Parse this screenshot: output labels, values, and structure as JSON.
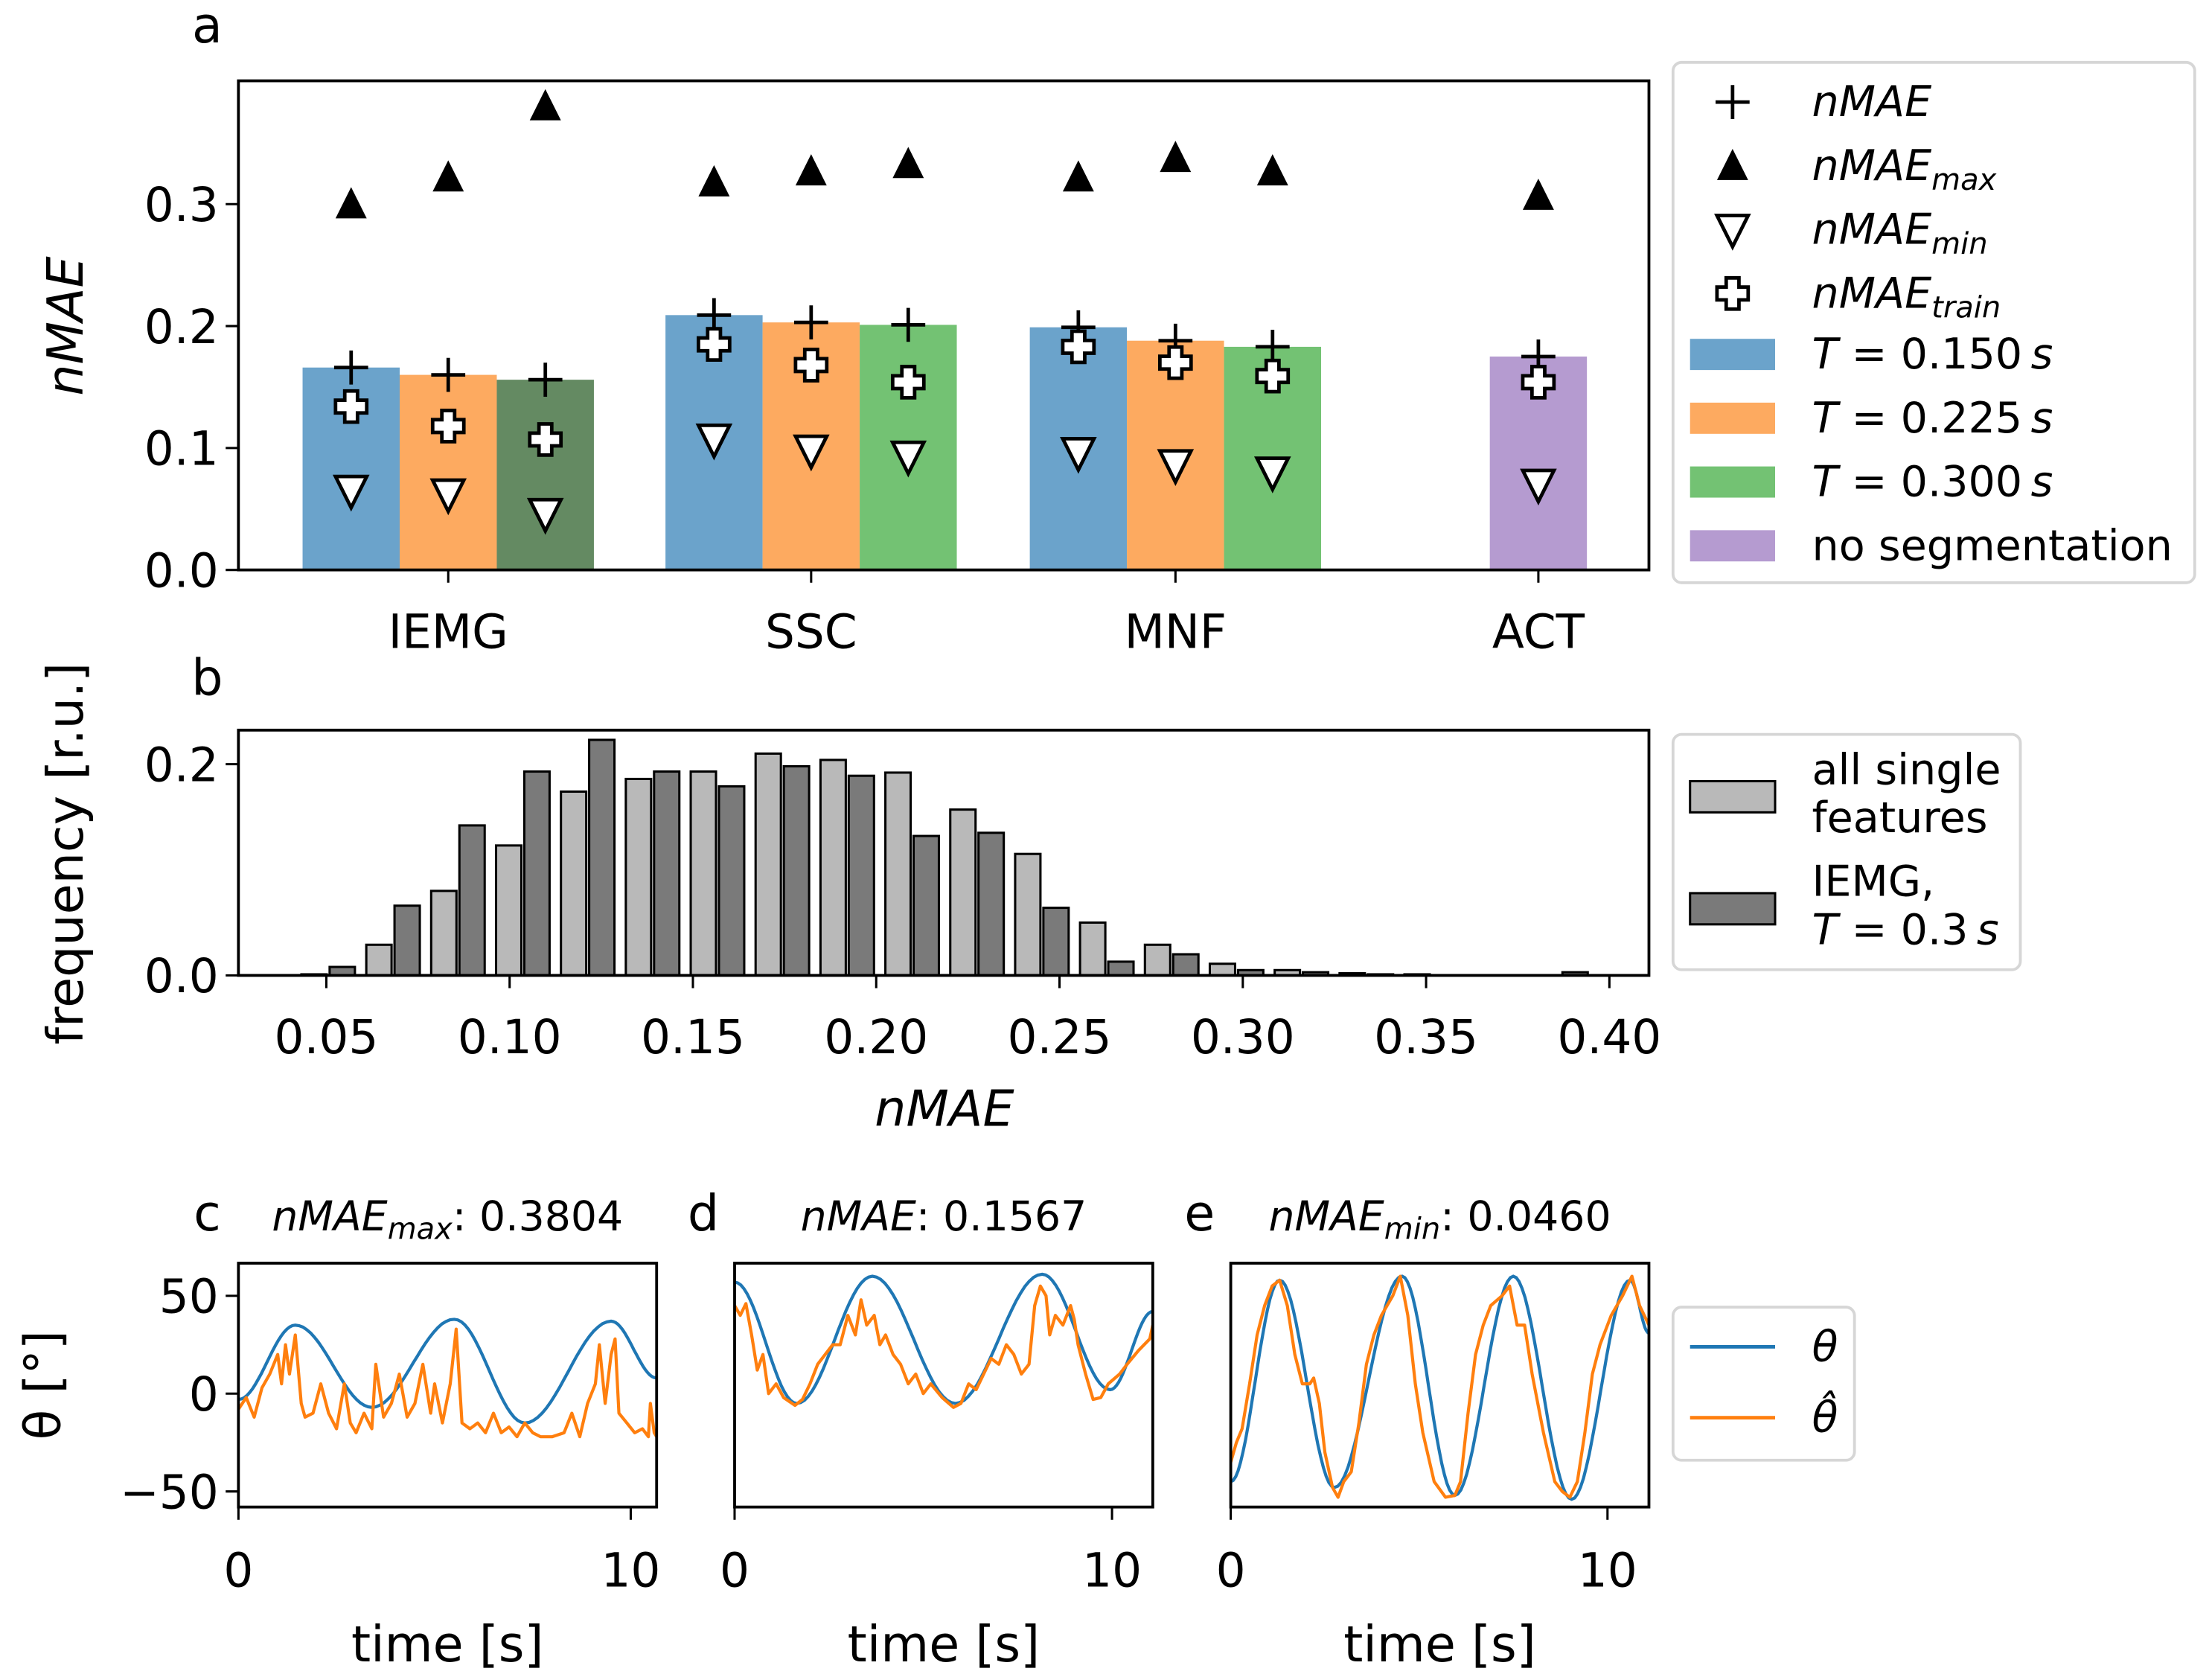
{
  "colors": {
    "blue": "#6ba3cb",
    "orange": "#fdaa60",
    "green": "#73c273",
    "dark_green": "#648a62",
    "purple": "#b59bd0",
    "light_gray": "#b9b9b9",
    "dark_gray": "#7a7a7a",
    "theta": "#1f77b4",
    "theta_hat": "#ff7f0e"
  },
  "chart_data": [
    {
      "panel": "a",
      "type": "bar",
      "panel_label": "a",
      "ylabel": "nMAE",
      "ylim": [
        0,
        0.4
      ],
      "yticks": [
        "0.0",
        "0.1",
        "0.2",
        "0.3"
      ],
      "categories": [
        "IEMG",
        "SSC",
        "MNF",
        "ACT"
      ],
      "series": [
        {
          "name": "T = 0.150 s",
          "values": [
            0.166,
            0.209,
            0.199,
            null
          ],
          "nMAE_max": [
            0.3,
            0.318,
            0.322,
            null
          ],
          "nMAE_min": [
            0.065,
            0.107,
            0.096,
            null
          ],
          "nMAE_train": [
            0.134,
            0.185,
            0.183,
            null
          ]
        },
        {
          "name": "T = 0.225 s",
          "values": [
            0.16,
            0.203,
            0.188,
            null
          ],
          "nMAE_max": [
            0.322,
            0.327,
            0.338,
            null
          ],
          "nMAE_min": [
            0.062,
            0.098,
            0.086,
            null
          ],
          "nMAE_train": [
            0.118,
            0.168,
            0.17,
            null
          ]
        },
        {
          "name": "T = 0.300 s",
          "values": [
            0.156,
            0.201,
            0.183,
            null
          ],
          "nMAE_max": [
            0.3804,
            0.333,
            0.327,
            null
          ],
          "nMAE_min": [
            0.046,
            0.093,
            0.08,
            null
          ],
          "nMAE_train": [
            0.107,
            0.154,
            0.159,
            null
          ]
        },
        {
          "name": "no segmentation",
          "values": [
            null,
            null,
            null,
            0.175
          ],
          "nMAE_max": [
            null,
            null,
            null,
            0.307
          ],
          "nMAE_min": [
            null,
            null,
            null,
            0.07
          ],
          "nMAE_train": [
            null,
            null,
            null,
            0.154
          ]
        }
      ],
      "legend": {
        "placement": "outside-right",
        "markers": [
          {
            "metric": "nMAE",
            "sub": ""
          },
          {
            "metric": "nMAE",
            "sub": "max"
          },
          {
            "metric": "nMAE",
            "sub": "min"
          },
          {
            "metric": "nMAE",
            "sub": "train"
          }
        ],
        "patches": [
          {
            "var": "T",
            "eq": " = ",
            "value": "0.150",
            "unit": "s"
          },
          {
            "var": "T",
            "eq": " = ",
            "value": "0.225",
            "unit": "s"
          },
          {
            "var": "T",
            "eq": " = ",
            "value": "0.300",
            "unit": "s"
          },
          {
            "text": "no segmentation"
          }
        ]
      }
    },
    {
      "panel": "b",
      "type": "bar",
      "panel_label": "b",
      "xlabel": "nMAE",
      "ylabel": "frequency [r.u.]",
      "xlim": [
        0.03,
        0.415
      ],
      "ylim": [
        0,
        0.23
      ],
      "xticks": [
        "0.05",
        "0.10",
        "0.15",
        "0.20",
        "0.25",
        "0.30",
        "0.35",
        "0.40"
      ],
      "yticks": [
        "0.0",
        "0.2"
      ],
      "bin_width": 0.0177,
      "bin_centers": [
        0.0505,
        0.0682,
        0.0859,
        0.1036,
        0.1213,
        0.139,
        0.1567,
        0.1744,
        0.1921,
        0.2098,
        0.2275,
        0.2452,
        0.2629,
        0.2806,
        0.2983,
        0.316,
        0.3337,
        0.3514,
        0.3691,
        0.3868
      ],
      "series": [
        {
          "name": "all single features",
          "values": [
            0.001,
            0.029,
            0.08,
            0.123,
            0.174,
            0.186,
            0.193,
            0.21,
            0.204,
            0.192,
            0.157,
            0.115,
            0.05,
            0.029,
            0.011,
            0.005,
            0.002,
            0.001,
            0,
            0
          ]
        },
        {
          "name": "IEMG, T = 0.3 s",
          "values": [
            0.008,
            0.066,
            0.142,
            0.193,
            0.223,
            0.193,
            0.179,
            0.198,
            0.189,
            0.132,
            0.135,
            0.064,
            0.013,
            0.02,
            0.005,
            0.003,
            0.001,
            0,
            0,
            0.003
          ]
        }
      ],
      "legend": {
        "placement": "outside-right",
        "entries": [
          {
            "line1": "all single",
            "line2": "features"
          },
          {
            "line1": "IEMG,",
            "var": "T",
            "eq": " = ",
            "value": "0.3",
            "unit": "s"
          }
        ]
      }
    },
    {
      "panel": "c",
      "type": "line",
      "panel_label": "c",
      "title": {
        "metric": "nMAE",
        "sub": "max",
        "value": ": 0.3804"
      },
      "xlabel": "time [s]",
      "ylabel": "θ [°]",
      "xlim": [
        0,
        10.66
      ],
      "ylim": [
        -62,
        67
      ],
      "xticks": [
        "0",
        "10"
      ],
      "yticks": [
        "50",
        "0",
        "−50"
      ],
      "theta_extrema": [
        [
          0,
          -3
        ],
        [
          1.45,
          35
        ],
        [
          3.4,
          -7
        ],
        [
          5.5,
          38
        ],
        [
          7.3,
          -15
        ],
        [
          9.5,
          37
        ],
        [
          10.66,
          8
        ]
      ],
      "theta_hat": [
        [
          0,
          -8
        ],
        [
          0.2,
          -2
        ],
        [
          0.4,
          -12
        ],
        [
          0.6,
          3
        ],
        [
          0.8,
          10
        ],
        [
          1.0,
          20
        ],
        [
          1.1,
          5
        ],
        [
          1.2,
          25
        ],
        [
          1.3,
          10
        ],
        [
          1.45,
          30
        ],
        [
          1.6,
          -5
        ],
        [
          1.7,
          -12
        ],
        [
          1.9,
          -10
        ],
        [
          2.1,
          5
        ],
        [
          2.3,
          -10
        ],
        [
          2.5,
          -18
        ],
        [
          2.7,
          5
        ],
        [
          2.85,
          -15
        ],
        [
          3.0,
          -20
        ],
        [
          3.2,
          -10
        ],
        [
          3.4,
          -18
        ],
        [
          3.5,
          15
        ],
        [
          3.7,
          -12
        ],
        [
          3.9,
          -5
        ],
        [
          4.1,
          10
        ],
        [
          4.3,
          -12
        ],
        [
          4.5,
          -5
        ],
        [
          4.7,
          15
        ],
        [
          4.9,
          -10
        ],
        [
          5.0,
          5
        ],
        [
          5.2,
          -15
        ],
        [
          5.4,
          5
        ],
        [
          5.55,
          33
        ],
        [
          5.7,
          -15
        ],
        [
          5.9,
          -18
        ],
        [
          6.1,
          -15
        ],
        [
          6.3,
          -20
        ],
        [
          6.5,
          -10
        ],
        [
          6.7,
          -20
        ],
        [
          6.9,
          -17
        ],
        [
          7.1,
          -22
        ],
        [
          7.3,
          -15
        ],
        [
          7.5,
          -20
        ],
        [
          7.7,
          -22
        ],
        [
          8.0,
          -22
        ],
        [
          8.3,
          -20
        ],
        [
          8.5,
          -10
        ],
        [
          8.7,
          -22
        ],
        [
          8.9,
          -5
        ],
        [
          9.1,
          5
        ],
        [
          9.2,
          25
        ],
        [
          9.35,
          -5
        ],
        [
          9.5,
          20
        ],
        [
          9.6,
          28
        ],
        [
          9.7,
          -10
        ],
        [
          9.9,
          -15
        ],
        [
          10.1,
          -20
        ],
        [
          10.3,
          -18
        ],
        [
          10.45,
          -22
        ],
        [
          10.5,
          -5
        ],
        [
          10.6,
          -20
        ],
        [
          10.66,
          -22
        ]
      ]
    },
    {
      "panel": "d",
      "type": "line",
      "panel_label": "d",
      "title": {
        "metric": "nMAE",
        "sub": "",
        "value": ": 0.1567"
      },
      "xlabel": "time [s]",
      "xlim": [
        0,
        11.08
      ],
      "ylim": [
        -62,
        67
      ],
      "xticks": [
        "0",
        "10"
      ],
      "theta_extrema": [
        [
          0,
          57
        ],
        [
          1.65,
          -5
        ],
        [
          3.65,
          60
        ],
        [
          5.85,
          -5
        ],
        [
          8.15,
          61
        ],
        [
          9.95,
          2
        ],
        [
          11.08,
          42
        ]
      ],
      "theta_hat": [
        [
          0,
          45
        ],
        [
          0.15,
          40
        ],
        [
          0.3,
          46
        ],
        [
          0.45,
          30
        ],
        [
          0.6,
          12
        ],
        [
          0.75,
          20
        ],
        [
          0.9,
          0
        ],
        [
          1.1,
          5
        ],
        [
          1.3,
          -2
        ],
        [
          1.6,
          -6
        ],
        [
          1.8,
          -3
        ],
        [
          2.0,
          5
        ],
        [
          2.2,
          15
        ],
        [
          2.4,
          20
        ],
        [
          2.6,
          25
        ],
        [
          2.8,
          25
        ],
        [
          3.0,
          40
        ],
        [
          3.2,
          30
        ],
        [
          3.35,
          48
        ],
        [
          3.5,
          35
        ],
        [
          3.7,
          40
        ],
        [
          3.85,
          25
        ],
        [
          4.0,
          30
        ],
        [
          4.2,
          20
        ],
        [
          4.4,
          15
        ],
        [
          4.6,
          5
        ],
        [
          4.8,
          10
        ],
        [
          5.0,
          0
        ],
        [
          5.2,
          5
        ],
        [
          5.5,
          -2
        ],
        [
          5.8,
          -7
        ],
        [
          6.0,
          -5
        ],
        [
          6.2,
          5
        ],
        [
          6.4,
          2
        ],
        [
          6.6,
          10
        ],
        [
          6.8,
          18
        ],
        [
          7.0,
          15
        ],
        [
          7.2,
          25
        ],
        [
          7.4,
          20
        ],
        [
          7.6,
          10
        ],
        [
          7.8,
          15
        ],
        [
          7.95,
          45
        ],
        [
          8.1,
          55
        ],
        [
          8.25,
          50
        ],
        [
          8.35,
          30
        ],
        [
          8.5,
          40
        ],
        [
          8.7,
          35
        ],
        [
          8.9,
          45
        ],
        [
          9.0,
          38
        ],
        [
          9.1,
          25
        ],
        [
          9.3,
          10
        ],
        [
          9.5,
          -3
        ],
        [
          9.7,
          -2
        ],
        [
          9.9,
          5
        ],
        [
          10.2,
          10
        ],
        [
          10.4,
          15
        ],
        [
          10.7,
          22
        ],
        [
          11.0,
          28
        ],
        [
          11.08,
          35
        ]
      ]
    },
    {
      "panel": "e",
      "type": "line",
      "panel_label": "e",
      "title": {
        "metric": "nMAE",
        "sub": "min",
        "value": ": 0.0460"
      },
      "xlabel": "time [s]",
      "xlim": [
        0,
        11.1
      ],
      "ylim": [
        -62,
        67
      ],
      "xticks": [
        "0",
        "10"
      ],
      "theta_extrema": [
        [
          0,
          -45
        ],
        [
          1.3,
          58
        ],
        [
          2.75,
          -48
        ],
        [
          4.55,
          60
        ],
        [
          5.95,
          -52
        ],
        [
          7.5,
          60
        ],
        [
          9.05,
          -54
        ],
        [
          10.6,
          58
        ],
        [
          11.1,
          31
        ]
      ],
      "theta_hat": [
        [
          0,
          -35
        ],
        [
          0.15,
          -25
        ],
        [
          0.3,
          -18
        ],
        [
          0.5,
          5
        ],
        [
          0.7,
          30
        ],
        [
          0.9,
          45
        ],
        [
          1.1,
          55
        ],
        [
          1.3,
          58
        ],
        [
          1.5,
          45
        ],
        [
          1.7,
          20
        ],
        [
          1.9,
          5
        ],
        [
          2.1,
          5
        ],
        [
          2.2,
          8
        ],
        [
          2.35,
          -5
        ],
        [
          2.5,
          -30
        ],
        [
          2.7,
          -48
        ],
        [
          2.85,
          -53
        ],
        [
          3.0,
          -45
        ],
        [
          3.2,
          -40
        ],
        [
          3.4,
          -15
        ],
        [
          3.6,
          15
        ],
        [
          3.8,
          30
        ],
        [
          4.0,
          40
        ],
        [
          4.3,
          50
        ],
        [
          4.5,
          60
        ],
        [
          4.7,
          40
        ],
        [
          4.9,
          5
        ],
        [
          5.1,
          -20
        ],
        [
          5.4,
          -45
        ],
        [
          5.7,
          -53
        ],
        [
          5.95,
          -52
        ],
        [
          6.1,
          -45
        ],
        [
          6.3,
          -10
        ],
        [
          6.5,
          20
        ],
        [
          6.7,
          35
        ],
        [
          6.9,
          45
        ],
        [
          7.2,
          50
        ],
        [
          7.4,
          55
        ],
        [
          7.6,
          35
        ],
        [
          7.8,
          35
        ],
        [
          8.0,
          10
        ],
        [
          8.3,
          -20
        ],
        [
          8.6,
          -45
        ],
        [
          8.8,
          -50
        ],
        [
          9.0,
          -53
        ],
        [
          9.2,
          -45
        ],
        [
          9.4,
          -20
        ],
        [
          9.6,
          10
        ],
        [
          9.8,
          25
        ],
        [
          10.1,
          40
        ],
        [
          10.4,
          50
        ],
        [
          10.65,
          60
        ],
        [
          10.85,
          45
        ],
        [
          11.1,
          35
        ]
      ],
      "legend": {
        "placement": "outside-right",
        "entries": [
          "θ",
          "θ̂"
        ]
      }
    }
  ]
}
